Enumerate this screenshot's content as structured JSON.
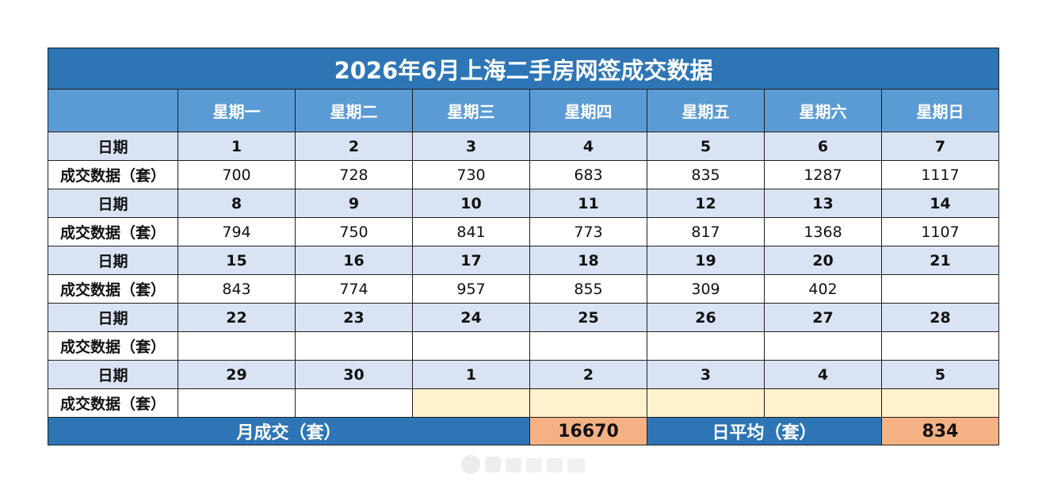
{
  "title": "2026年6月上海二手房网签成交数据",
  "weekdays": [
    "星期一",
    "星期二",
    "星期三",
    "星期四",
    "星期五",
    "星期六",
    "星期日"
  ],
  "row_label_date": "日期",
  "row_label_value": "成交数据（套）",
  "weeks": [
    {
      "dates": [
        "1",
        "2",
        "3",
        "4",
        "5",
        "6",
        "7"
      ],
      "values": [
        "700",
        "728",
        "730",
        "683",
        "835",
        "1287",
        "1117"
      ]
    },
    {
      "dates": [
        "8",
        "9",
        "10",
        "11",
        "12",
        "13",
        "14"
      ],
      "values": [
        "794",
        "750",
        "841",
        "773",
        "817",
        "1368",
        "1107"
      ]
    },
    {
      "dates": [
        "15",
        "16",
        "17",
        "18",
        "19",
        "20",
        "21"
      ],
      "values": [
        "843",
        "774",
        "957",
        "855",
        "309",
        "402",
        ""
      ]
    },
    {
      "dates": [
        "22",
        "23",
        "24",
        "25",
        "26",
        "27",
        "28"
      ],
      "values": [
        "",
        "",
        "",
        "",
        "",
        "",
        ""
      ]
    },
    {
      "dates": [
        "29",
        "30",
        "1",
        "2",
        "3",
        "4",
        "5"
      ],
      "values": [
        "",
        "",
        "",
        "",
        "",
        "",
        ""
      ]
    }
  ],
  "footer": {
    "monthly_label": "月成交（套）",
    "monthly_value": "16670",
    "daily_avg_label": "日平均（套）",
    "daily_avg_value": "834"
  },
  "colors": {
    "title_bg": "#2e75b6",
    "header_bg": "#5b9bd5",
    "date_row_bg": "#dae3f3",
    "next_month_cell_bg": "#fff2cc",
    "total_cell_bg": "#f4b183"
  }
}
